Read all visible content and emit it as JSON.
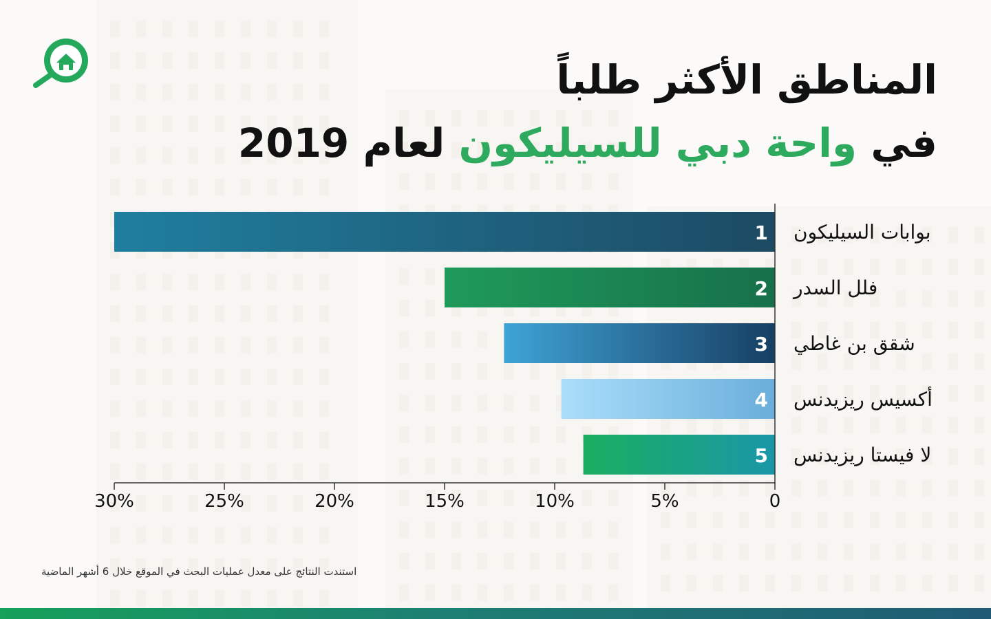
{
  "title": {
    "line1": "المناطق الأكثر طلباً",
    "line2_prefix": "في",
    "line2_highlight": "واحة دبي للسيليكون",
    "line2_suffix": "لعام 2019"
  },
  "footnote": "استندت النتائج على معدل عمليات البحث في الموقع خلال 6 أشهر الماضية",
  "colors": {
    "highlight": "#2eaa5f",
    "bars": [
      [
        "#1f7f9f",
        "#1d4a63"
      ],
      [
        "#1f9a5a",
        "#17704a"
      ],
      [
        "#3fa3d6",
        "#173f63"
      ],
      [
        "#a9defa",
        "#6aaedb"
      ],
      [
        "#1aae5f",
        "#1a97a8"
      ]
    ]
  },
  "chart_data": {
    "type": "bar",
    "orientation": "horizontal",
    "direction": "right-to-left",
    "categories": [
      "بوابات السيليكون",
      "فلل السدر",
      "شقق بن غاطي",
      "أكسيس ريزيدنس",
      "لا فيستا ريزيدنس"
    ],
    "ranks": [
      "1",
      "2",
      "3",
      "4",
      "5"
    ],
    "values": [
      30,
      15,
      12.3,
      9.7,
      8.7
    ],
    "xlim": [
      0,
      30
    ],
    "ticks": [
      0,
      5,
      10,
      15,
      20,
      25,
      30
    ],
    "tick_labels": [
      "0",
      "5%",
      "10%",
      "15%",
      "20%",
      "25%",
      "30%"
    ],
    "grid": false,
    "legend": "none"
  }
}
